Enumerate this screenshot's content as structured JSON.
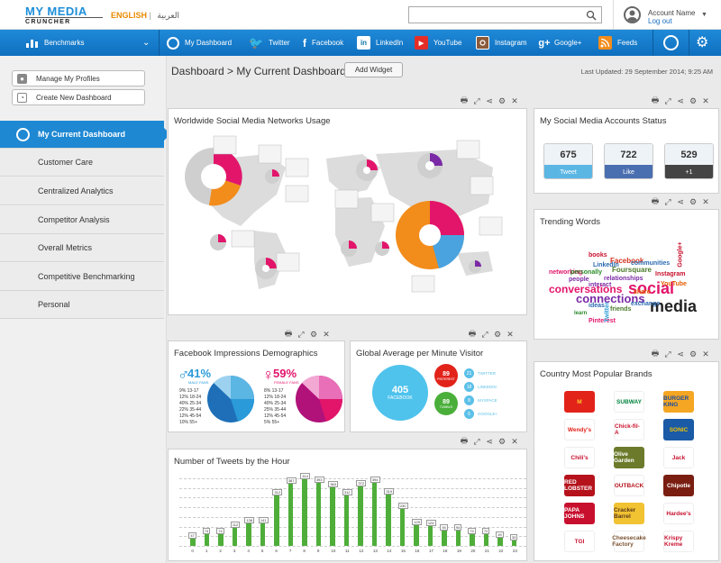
{
  "header": {
    "logo_line1": "MY MEDIA",
    "logo_line2": "CRUNCHER",
    "lang_en": "ENGLISH",
    "lang_ar": "العربية",
    "search_placeholder": "",
    "account_name": "Account Name",
    "logout": "Log out"
  },
  "nav": {
    "items": [
      {
        "label": "Benchmarks",
        "icon": "bar-chart-icon"
      },
      {
        "label": "My Dashboard",
        "icon": "dashboard-icon"
      },
      {
        "label": "Twitter",
        "icon": "twitter-icon"
      },
      {
        "label": "Facebook",
        "icon": "facebook-icon"
      },
      {
        "label": "LinkedIn",
        "icon": "linkedin-icon"
      },
      {
        "label": "YouTube",
        "icon": "youtube-icon"
      },
      {
        "label": "Instagram",
        "icon": "instagram-icon"
      },
      {
        "label": "Google+",
        "icon": "googleplus-icon"
      },
      {
        "label": "Feeds",
        "icon": "rss-icon"
      }
    ]
  },
  "sidebar": {
    "manage_profiles": "Manage My Profiles",
    "create_dashboard": "Create New Dashboard",
    "menu": [
      "My Current Dashboard",
      "Customer Care",
      "Centralized Analytics",
      "Competitor Analysis",
      "Overall Metrics",
      "Competitive Benchmarking",
      "Personal"
    ]
  },
  "main": {
    "breadcrumb": "Dashboard > My Current Dashboard",
    "add_widget": "Add Widget",
    "last_updated": "Last Updated: 29 September 2014; 9:25 AM"
  },
  "widgets": {
    "world_title": "Worldwide Social Media Networks Usage",
    "accounts_title": "My Social Media Accounts Status",
    "accounts": [
      {
        "count": "675",
        "label": "Tweet",
        "color": "#5bb6e4"
      },
      {
        "count": "722",
        "label": "Like",
        "color": "#4a6fb0"
      },
      {
        "count": "529",
        "label": "+1",
        "color": "#444444"
      }
    ],
    "trending_title": "Trending Words",
    "fb_title": "Facebook Impressions Demographics",
    "fb_male_pct": "41%",
    "fb_male_label": "MALE FANS",
    "fb_female_pct": "59%",
    "fb_female_label": "FEMALE FANS",
    "fb_legend": [
      [
        "9%",
        "13-17"
      ],
      [
        "12%",
        "18-24"
      ],
      [
        "40%",
        "25-34"
      ],
      [
        "22%",
        "35-44"
      ],
      [
        "12%",
        "45-54"
      ],
      [
        "10%",
        "55+"
      ]
    ],
    "fb_legend_female": [
      [
        "8%",
        "13-17"
      ],
      [
        "12%",
        "18-24"
      ],
      [
        "40%",
        "25-34"
      ],
      [
        "25%",
        "35-44"
      ],
      [
        "12%",
        "45-54"
      ],
      [
        "5%",
        "55+"
      ]
    ],
    "visitor_title": "Global Average per Minute Visitor",
    "visitor_main": {
      "value": "405",
      "label": "FACEBOOK"
    },
    "visitor_pinterest": {
      "value": "89",
      "label": "PINTEREST"
    },
    "visitor_tumblr": {
      "value": "89",
      "label": "TUMBLR"
    },
    "visitor_list": [
      {
        "value": "21",
        "label": "TWITTER",
        "color": "#5bc0e8"
      },
      {
        "value": "18",
        "label": "LINKEDIN",
        "color": "#5bc0e8"
      },
      {
        "value": "8",
        "label": "MYSPACE",
        "color": "#5bc0e8"
      },
      {
        "value": "6",
        "label": "GOOGLE+",
        "color": "#5bc0e8"
      }
    ],
    "tweets_title": "Number of Tweets by the Hour",
    "brands_title": "Country Most Popular Brands",
    "brands": [
      {
        "name": "M",
        "color": "#e2231a",
        "fg": "#ffc72c"
      },
      {
        "name": "SUBWAY",
        "color": "#ffffff",
        "fg": "#00843d"
      },
      {
        "name": "BURGER KING",
        "color": "#f5a623",
        "fg": "#1a4ea0"
      },
      {
        "name": "Wendy's",
        "color": "#ffffff",
        "fg": "#e2231a"
      },
      {
        "name": "Chick-fil-A",
        "color": "#ffffff",
        "fg": "#c8102e"
      },
      {
        "name": "SONIC",
        "color": "#1a5aa6",
        "fg": "#f2c200"
      },
      {
        "name": "Chili's",
        "color": "#ffffff",
        "fg": "#c8102e"
      },
      {
        "name": "Olive Garden",
        "color": "#6b7b2b",
        "fg": "#ffffff"
      },
      {
        "name": "Jack",
        "color": "#ffffff",
        "fg": "#c8102e"
      },
      {
        "name": "RED LOBSTER",
        "color": "#b5121b",
        "fg": "#ffffff"
      },
      {
        "name": "OUTBACK",
        "color": "#ffffff",
        "fg": "#b5121b"
      },
      {
        "name": "Chipotle",
        "color": "#7a1e12",
        "fg": "#ffffff"
      },
      {
        "name": "PAPA JOHNS",
        "color": "#c8102e",
        "fg": "#ffffff"
      },
      {
        "name": "Cracker Barrel",
        "color": "#f1c232",
        "fg": "#5a3a1a"
      },
      {
        "name": "Hardee's",
        "color": "#ffffff",
        "fg": "#c8102e"
      },
      {
        "name": "TGI",
        "color": "#ffffff",
        "fg": "#c8102e"
      },
      {
        "name": "Cheesecake Factory",
        "color": "#ffffff",
        "fg": "#7a5230"
      },
      {
        "name": "Krispy Kreme",
        "color": "#ffffff",
        "fg": "#c8102e"
      }
    ],
    "trending_words": [
      {
        "text": "media",
        "size": 18,
        "color": "#222"
      },
      {
        "text": "social",
        "size": 18,
        "color": "#e2156b"
      },
      {
        "text": "connections",
        "size": 13,
        "color": "#7b2aa6"
      },
      {
        "text": "conversations",
        "size": 12,
        "color": "#e2156b"
      },
      {
        "text": "Facebook",
        "size": 8,
        "color": "#d4321f"
      },
      {
        "text": "Foursquare",
        "size": 8,
        "color": "#4a7a2a"
      },
      {
        "text": "Instagram",
        "size": 7,
        "color": "#c8102e"
      },
      {
        "text": "YouTube",
        "size": 7,
        "color": "#e65c00"
      },
      {
        "text": "exchange",
        "size": 7,
        "color": "#2a6ab0"
      },
      {
        "text": "relationships",
        "size": 7,
        "color": "#7b2aa6"
      },
      {
        "text": "networking",
        "size": 7,
        "color": "#e2156b"
      },
      {
        "text": "personally",
        "size": 7,
        "color": "#2a8a2a"
      },
      {
        "text": "communities",
        "size": 7,
        "color": "#2a6ab0"
      },
      {
        "text": "interact",
        "size": 7,
        "color": "#7b2aa6"
      },
      {
        "text": "Pinterest",
        "size": 7,
        "color": "#e2156b"
      },
      {
        "text": "friends",
        "size": 7,
        "color": "#4a7a2a"
      },
      {
        "text": "books",
        "size": 7,
        "color": "#c8102e"
      },
      {
        "text": "share",
        "size": 7,
        "color": "#e65c00"
      },
      {
        "text": "learn",
        "size": 6,
        "color": "#2a8a2a"
      },
      {
        "text": "Google+",
        "size": 7,
        "color": "#c8102e"
      },
      {
        "text": "people",
        "size": 7,
        "color": "#7b2aa6"
      },
      {
        "text": "ideas",
        "size": 7,
        "color": "#2a6ab0"
      },
      {
        "text": "Twitter",
        "size": 7,
        "color": "#2a9ad8"
      },
      {
        "text": "LinkedIn",
        "size": 7,
        "color": "#2a6ab0"
      }
    ]
  },
  "chart_data": {
    "type": "bar",
    "title": "Number of Tweets by the Hour",
    "categories": [
      "0",
      "1",
      "2",
      "3",
      "4",
      "5",
      "6",
      "7",
      "8",
      "9",
      "10",
      "11",
      "12",
      "13",
      "14",
      "15",
      "16",
      "17",
      "18",
      "19",
      "20",
      "21",
      "22",
      "23"
    ],
    "values": [
      47,
      74,
      74,
      112,
      138,
      141,
      312,
      387,
      414,
      393,
      363,
      312,
      372,
      394,
      319,
      230,
      129,
      124,
      94,
      94,
      74,
      72,
      49,
      33
    ],
    "ylim": [
      0,
      420
    ]
  }
}
